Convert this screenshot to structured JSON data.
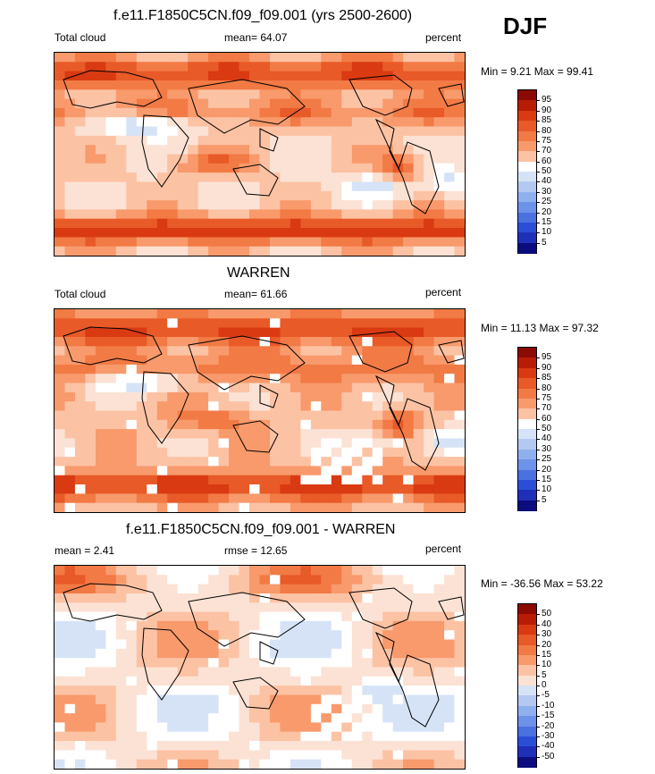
{
  "season": "DJF",
  "panels": [
    {
      "title": "f.e11.F1850C5CN.f09_f09.001 (yrs 2500-2600)",
      "left_label": "Total cloud",
      "center_label": "mean=  64.07",
      "right_label": "percent",
      "minmax": "Min =   9.21 Max =  99.41",
      "colorbar": {
        "levels": [
          "95",
          "90",
          "85",
          "80",
          "75",
          "70",
          "60",
          "50",
          "40",
          "30",
          "25",
          "20",
          "15",
          "10",
          "5"
        ],
        "colors": [
          "#8b0a02",
          "#b81c05",
          "#d93a12",
          "#e85a28",
          "#f27a45",
          "#f89a6c",
          "#fcc2a4",
          "#ffffff",
          "#d6e3f7",
          "#b3c9f2",
          "#8fb0ee",
          "#6d92e9",
          "#4b70e0",
          "#2a4fd6",
          "#1f2fb8",
          "#0c0c7e"
        ],
        "mapColors": [
          "#d93a12",
          "#e85a28",
          "#f27a45",
          "#f89a6c",
          "#fcc2a4",
          "#fbe2d4",
          "#ffffff",
          "#d6e3f7",
          "#b3c9f2",
          "#8fb0ee",
          "#4b70e0"
        ]
      }
    },
    {
      "title": "WARREN",
      "left_label": "Total cloud",
      "center_label": "mean=  61.66",
      "right_label": "percent",
      "minmax": "Min =  11.13 Max =  97.32",
      "colorbar": {
        "levels": [
          "95",
          "90",
          "85",
          "80",
          "75",
          "70",
          "60",
          "50",
          "40",
          "30",
          "25",
          "20",
          "15",
          "10",
          "5"
        ],
        "colors": [
          "#8b0a02",
          "#b81c05",
          "#d93a12",
          "#e85a28",
          "#f27a45",
          "#f89a6c",
          "#fcc2a4",
          "#ffffff",
          "#d6e3f7",
          "#b3c9f2",
          "#8fb0ee",
          "#6d92e9",
          "#4b70e0",
          "#2a4fd6",
          "#1f2fb8",
          "#0c0c7e"
        ],
        "mapColors": [
          "#d93a12",
          "#e85a28",
          "#f27a45",
          "#f89a6c",
          "#fcc2a4",
          "#fbe2d4",
          "#ffffff",
          "#d6e3f7",
          "#b3c9f2",
          "#8fb0ee"
        ]
      }
    },
    {
      "title": "f.e11.F1850C5CN.f09_f09.001 - WARREN",
      "left_label": "mean =   2.41",
      "center_label": "rmse =  12.65",
      "right_label": "percent",
      "minmax": "Min = -36.56 Max =  53.22",
      "colorbar": {
        "levels": [
          "50",
          "40",
          "30",
          "20",
          "15",
          "10",
          "5",
          "0",
          "-5",
          "-10",
          "-15",
          "-20",
          "-30",
          "-40",
          "-50"
        ],
        "colors": [
          "#8b0a02",
          "#b81c05",
          "#d93a12",
          "#e85a28",
          "#f27a45",
          "#f89a6c",
          "#fcc2a4",
          "#fbe2d4",
          "#d6e3f7",
          "#b3c9f2",
          "#8fb0ee",
          "#6d92e9",
          "#4b70e0",
          "#2a4fd6",
          "#1f2fb8",
          "#0c0c7e"
        ],
        "mapColors": [
          "#e85a28",
          "#f27a45",
          "#f89a6c",
          "#fcc2a4",
          "#fbe2d4",
          "#ffffff",
          "#d6e3f7",
          "#b3c9f2",
          "#6d92e9",
          "#4b70e0"
        ]
      }
    }
  ]
}
